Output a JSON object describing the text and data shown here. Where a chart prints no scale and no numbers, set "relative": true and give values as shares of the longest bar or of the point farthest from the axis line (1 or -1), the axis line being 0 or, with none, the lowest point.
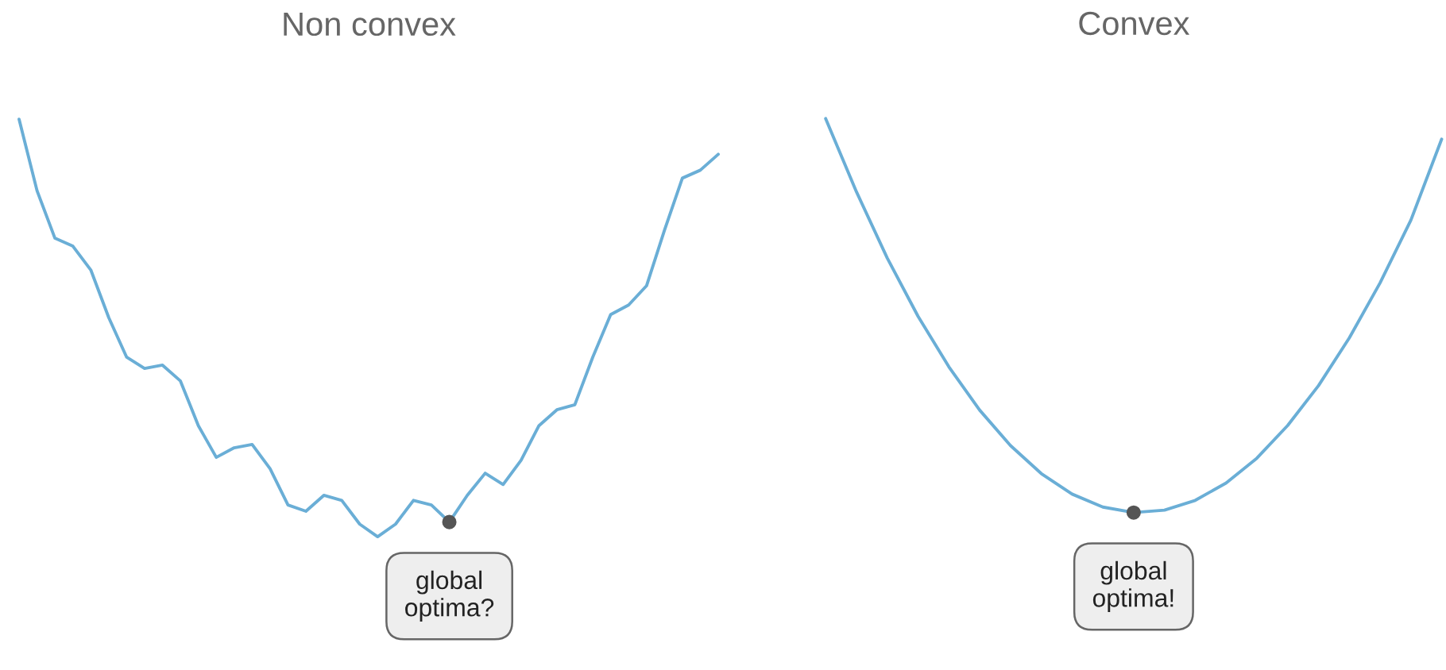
{
  "chart_data": [
    {
      "type": "line",
      "title": "Non convex",
      "relative": true,
      "annotations": [
        {
          "text": "global\noptima?",
          "y": 0.035
        }
      ],
      "categories": [
        null,
        null,
        null,
        null,
        null,
        null,
        null,
        null,
        null,
        null,
        null,
        null,
        null,
        null,
        null,
        null,
        null,
        null,
        null,
        null,
        null,
        null,
        null,
        null,
        null,
        null,
        null,
        null,
        null,
        null,
        null,
        null,
        null,
        null,
        null,
        null,
        null,
        null,
        null,
        null
      ],
      "series": [
        {
          "color": "#6aaed6",
          "values": [
            1.0,
            0.829,
            0.715,
            0.696,
            0.639,
            0.525,
            0.43,
            0.403,
            0.411,
            0.373,
            0.266,
            0.19,
            0.213,
            0.221,
            0.163,
            0.076,
            0.061,
            0.099,
            0.087,
            0.03,
            0.0,
            0.03,
            0.087,
            0.076,
            0.035,
            0.099,
            0.152,
            0.125,
            0.183,
            0.266,
            0.304,
            0.316,
            0.43,
            0.532,
            0.555,
            0.601,
            0.734,
            0.859,
            0.878,
            0.916
          ]
        }
      ]
    },
    {
      "type": "line",
      "title": "Convex",
      "relative": true,
      "annotations": [
        {
          "text": "global\noptima!",
          "y": 0.0
        }
      ],
      "categories": [
        null,
        null,
        null,
        null,
        null,
        null,
        null,
        null,
        null,
        null,
        null,
        null,
        null,
        null,
        null,
        null,
        null,
        null,
        null,
        null,
        null
      ],
      "series": [
        {
          "color": "#6aaed6",
          "values": [
            1.0,
            0.814,
            0.646,
            0.498,
            0.37,
            0.26,
            0.17,
            0.099,
            0.047,
            0.014,
            0.0,
            0.006,
            0.031,
            0.075,
            0.138,
            0.221,
            0.322,
            0.443,
            0.583,
            0.742,
            0.948
          ]
        }
      ]
    }
  ]
}
